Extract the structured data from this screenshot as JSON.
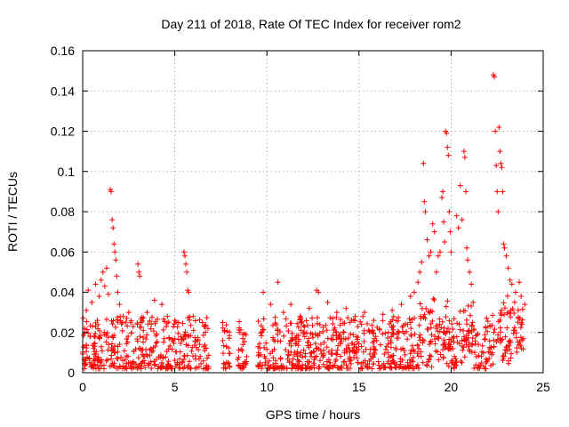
{
  "chart_data": {
    "type": "scatter",
    "title": "Day 211 of 2018, Rate Of TEC Index for receiver rom2",
    "xlabel": "GPS time / hours",
    "ylabel": "ROTI / TECUs",
    "xlim": [
      0,
      25
    ],
    "ylim": [
      0,
      0.16
    ],
    "xticks": [
      0,
      5,
      10,
      15,
      20,
      25
    ],
    "xtick_labels": [
      "0",
      "5",
      "10",
      "15",
      "20",
      "25"
    ],
    "yticks": [
      0,
      0.02,
      0.04,
      0.06,
      0.08,
      0.1,
      0.12,
      0.14,
      0.16
    ],
    "ytick_labels": [
      "0",
      "0.02",
      "0.04",
      "0.06",
      "0.08",
      "0.1",
      "0.12",
      "0.14",
      "0.16"
    ],
    "grid": true,
    "marker": "+",
    "color": "#ff0000",
    "series": [
      {
        "name": "ROTI",
        "points": [
          [
            0.1,
            0.022
          ],
          [
            0.2,
            0.031
          ],
          [
            0.3,
            0.041
          ],
          [
            0.4,
            0.018
          ],
          [
            0.5,
            0.035
          ],
          [
            0.6,
            0.012
          ],
          [
            0.7,
            0.044
          ],
          [
            0.8,
            0.026
          ],
          [
            0.9,
            0.038
          ],
          [
            1.0,
            0.046
          ],
          [
            1.1,
            0.05
          ],
          [
            1.2,
            0.043
          ],
          [
            1.3,
            0.052
          ],
          [
            1.4,
            0.039
          ],
          [
            1.5,
            0.091
          ],
          [
            1.55,
            0.09
          ],
          [
            1.6,
            0.076
          ],
          [
            1.65,
            0.072
          ],
          [
            1.7,
            0.064
          ],
          [
            1.75,
            0.06
          ],
          [
            1.8,
            0.056
          ],
          [
            1.85,
            0.048
          ],
          [
            1.9,
            0.04
          ],
          [
            2.0,
            0.034
          ],
          [
            2.2,
            0.028
          ],
          [
            2.5,
            0.03
          ],
          [
            3.0,
            0.054
          ],
          [
            3.05,
            0.05
          ],
          [
            3.1,
            0.048
          ],
          [
            3.5,
            0.03
          ],
          [
            3.9,
            0.036
          ],
          [
            4.3,
            0.034
          ],
          [
            4.6,
            0.028
          ],
          [
            5.0,
            0.026
          ],
          [
            5.5,
            0.06
          ],
          [
            5.55,
            0.058
          ],
          [
            5.6,
            0.054
          ],
          [
            5.65,
            0.05
          ],
          [
            5.7,
            0.041
          ],
          [
            5.75,
            0.04
          ],
          [
            6.0,
            0.028
          ],
          [
            6.5,
            0.025
          ],
          [
            6.8,
            0.022
          ],
          [
            7.6,
            0.025
          ],
          [
            7.7,
            0.021
          ],
          [
            7.8,
            0.013
          ],
          [
            7.9,
            0.005
          ],
          [
            8.5,
            0.02
          ],
          [
            8.7,
            0.014
          ],
          [
            8.9,
            0.008
          ],
          [
            9.8,
            0.04
          ],
          [
            10.2,
            0.034
          ],
          [
            10.6,
            0.045
          ],
          [
            10.9,
            0.03
          ],
          [
            11.3,
            0.034
          ],
          [
            11.8,
            0.028
          ],
          [
            12.3,
            0.032
          ],
          [
            12.7,
            0.041
          ],
          [
            12.8,
            0.04
          ],
          [
            13.3,
            0.035
          ],
          [
            13.8,
            0.03
          ],
          [
            14.3,
            0.032
          ],
          [
            14.8,
            0.028
          ],
          [
            15.3,
            0.03
          ],
          [
            15.8,
            0.026
          ],
          [
            16.3,
            0.029
          ],
          [
            16.8,
            0.031
          ],
          [
            17.3,
            0.034
          ],
          [
            17.8,
            0.038
          ],
          [
            18.0,
            0.04
          ],
          [
            18.2,
            0.045
          ],
          [
            18.3,
            0.05
          ],
          [
            18.4,
            0.055
          ],
          [
            18.5,
            0.104
          ],
          [
            18.55,
            0.085
          ],
          [
            18.6,
            0.08
          ],
          [
            18.7,
            0.066
          ],
          [
            18.8,
            0.058
          ],
          [
            18.9,
            0.06
          ],
          [
            19.0,
            0.074
          ],
          [
            19.1,
            0.07
          ],
          [
            19.2,
            0.05
          ],
          [
            19.3,
            0.058
          ],
          [
            19.4,
            0.06
          ],
          [
            19.5,
            0.087
          ],
          [
            19.55,
            0.09
          ],
          [
            19.6,
            0.075
          ],
          [
            19.65,
            0.065
          ],
          [
            19.7,
            0.12
          ],
          [
            19.75,
            0.119
          ],
          [
            19.8,
            0.112
          ],
          [
            19.85,
            0.108
          ],
          [
            19.9,
            0.08
          ],
          [
            19.95,
            0.07
          ],
          [
            20.0,
            0.06
          ],
          [
            20.3,
            0.078
          ],
          [
            20.4,
            0.072
          ],
          [
            20.5,
            0.093
          ],
          [
            20.6,
            0.076
          ],
          [
            20.7,
            0.11
          ],
          [
            20.75,
            0.107
          ],
          [
            20.8,
            0.09
          ],
          [
            20.85,
            0.062
          ],
          [
            20.9,
            0.056
          ],
          [
            21.0,
            0.05
          ],
          [
            21.1,
            0.044
          ],
          [
            21.2,
            0.035
          ],
          [
            22.3,
            0.148
          ],
          [
            22.35,
            0.147
          ],
          [
            22.4,
            0.12
          ],
          [
            22.45,
            0.103
          ],
          [
            22.5,
            0.09
          ],
          [
            22.55,
            0.08
          ],
          [
            22.6,
            0.122
          ],
          [
            22.65,
            0.11
          ],
          [
            22.7,
            0.104
          ],
          [
            22.75,
            0.102
          ],
          [
            22.8,
            0.09
          ],
          [
            22.85,
            0.064
          ],
          [
            22.9,
            0.062
          ],
          [
            23.0,
            0.058
          ],
          [
            23.1,
            0.052
          ],
          [
            23.2,
            0.046
          ],
          [
            23.3,
            0.044
          ],
          [
            23.5,
            0.04
          ],
          [
            23.7,
            0.045
          ],
          [
            23.8,
            0.038
          ],
          [
            24.0,
            0.034
          ]
        ]
      }
    ],
    "band_note": "dense cloud of + markers between 0.002 and ~0.03 across 0-24 h with gaps around 7-7.5 h and 9 h"
  }
}
